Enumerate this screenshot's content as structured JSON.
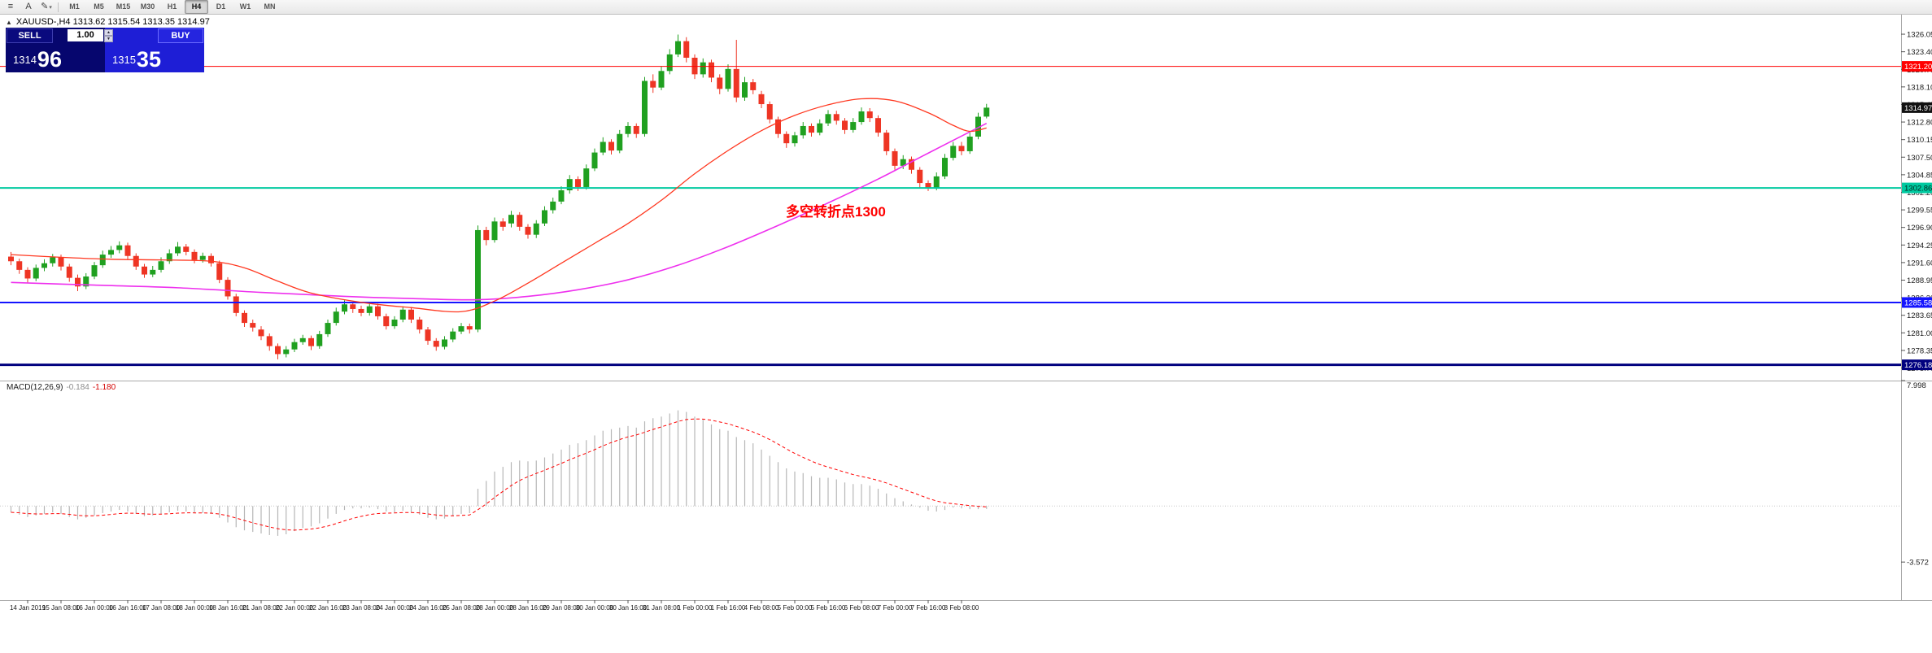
{
  "toolbar": {
    "icons": [
      {
        "name": "menu",
        "glyph": "≡"
      },
      {
        "name": "text-tool",
        "glyph": "A"
      },
      {
        "name": "draw-tool",
        "glyph": "✎",
        "caret": "▾"
      }
    ],
    "timeframes": [
      "M1",
      "M5",
      "M15",
      "M30",
      "H1",
      "H4",
      "D1",
      "W1",
      "MN"
    ],
    "active_timeframe": "H4"
  },
  "chart_header": {
    "marker": "▲",
    "text": "XAUUSD-,H4 1313.62 1315.54 1313.35 1314.97"
  },
  "trade_panel": {
    "sell_label": "SELL",
    "buy_label": "BUY",
    "volume": "1.00",
    "bid_small": "1314",
    "bid_big": "96",
    "ask_small": "1315",
    "ask_big": "35"
  },
  "annotation": {
    "text": "多空转折点1300",
    "color": "#ff0000"
  },
  "macd_panel": {
    "label": "MACD(12,26,9)",
    "value_main": "-0.184",
    "value_signal": "-1.180",
    "axis_labels": [
      {
        "text": "7.998",
        "value": 7.998
      },
      {
        "text": "-3.572",
        "value": -3.572
      }
    ]
  },
  "price_axis": {
    "ticks": [
      "1326.05",
      "1323.40",
      "1320.75",
      "1318.10",
      "1315.45",
      "1312.80",
      "1310.15",
      "1307.50",
      "1304.85",
      "1302.20",
      "1299.55",
      "1296.90",
      "1294.25",
      "1291.60",
      "1288.95",
      "1286.30",
      "1283.65",
      "1281.00",
      "1278.35",
      "1275.70"
    ]
  },
  "axis_tags": [
    {
      "text": "1321.20",
      "value": 1321.2,
      "bg": "#ff0000",
      "fg": "#ffffff"
    },
    {
      "text": "1314.97",
      "value": 1314.97,
      "bg": "#111111",
      "fg": "#ffffff"
    },
    {
      "text": "1302.86",
      "value": 1302.86,
      "bg": "#00c9a0",
      "fg": "#00281e"
    },
    {
      "text": "1285.58",
      "value": 1285.58,
      "bg": "#1414ff",
      "fg": "#ffffff"
    },
    {
      "text": "1276.18",
      "value": 1276.18,
      "bg": "#00007f",
      "fg": "#ffffff"
    }
  ],
  "time_axis": {
    "labels": [
      "14 Jan 2019",
      "15 Jan 08:00",
      "16 Jan 00:00",
      "16 Jan 16:00",
      "17 Jan 08:00",
      "18 Jan 00:00",
      "18 Jan 16:00",
      "21 Jan 08:00",
      "22 Jan 00:00",
      "22 Jan 16:00",
      "23 Jan 08:00",
      "24 Jan 00:00",
      "24 Jan 16:00",
      "25 Jan 08:00",
      "28 Jan 00:00",
      "28 Jan 16:00",
      "29 Jan 08:00",
      "30 Jan 00:00",
      "30 Jan 16:00",
      "31 Jan 08:00",
      "1 Feb 00:00",
      "1 Feb 16:00",
      "4 Feb 08:00",
      "5 Feb 00:00",
      "5 Feb 16:00",
      "6 Feb 08:00",
      "7 Feb 00:00",
      "7 Feb 16:00",
      "8 Feb 08:00"
    ]
  },
  "chart_data": {
    "type": "candlestick",
    "symbol": "XAUUSD-",
    "timeframe": "H4",
    "y_range": [
      1273.8,
      1329.0
    ],
    "macd_range": [
      -6.0,
      7.998
    ],
    "colors": {
      "up": "#20a020",
      "down": "#ee3524",
      "hist": "#b6b6b6",
      "signal": "#ff0000"
    },
    "h_lines": [
      {
        "price": 1321.2,
        "color": "#ff0000",
        "width": 1
      },
      {
        "price": 1302.86,
        "color": "#00c9a0",
        "width": 2
      },
      {
        "price": 1285.58,
        "color": "#1414ff",
        "width": 2
      },
      {
        "price": 1276.18,
        "color": "#00007f",
        "width": 3
      }
    ],
    "ma_fast": {
      "name": "MA fast",
      "color": "#ff3820",
      "points": [
        [
          0,
          1292.8
        ],
        [
          6,
          1292.4
        ],
        [
          12,
          1292.1
        ],
        [
          18,
          1292.0
        ],
        [
          24,
          1291.8
        ],
        [
          28,
          1290.8
        ],
        [
          32,
          1288.8
        ],
        [
          36,
          1287.0
        ],
        [
          42,
          1285.6
        ],
        [
          48,
          1284.8
        ],
        [
          54,
          1284.2
        ],
        [
          58,
          1285.8
        ],
        [
          62,
          1288.5
        ],
        [
          66,
          1291.5
        ],
        [
          70,
          1294.5
        ],
        [
          74,
          1297.5
        ],
        [
          78,
          1301.0
        ],
        [
          82,
          1305.0
        ],
        [
          86,
          1308.5
        ],
        [
          90,
          1311.5
        ],
        [
          94,
          1313.8
        ],
        [
          98,
          1315.4
        ],
        [
          102,
          1316.3
        ],
        [
          106,
          1316.0
        ],
        [
          110,
          1314.2
        ],
        [
          113,
          1312.3
        ],
        [
          115,
          1311.4
        ],
        [
          117,
          1311.9
        ]
      ]
    },
    "ma_slow": {
      "name": "MA slow",
      "color": "#ee30ee",
      "points": [
        [
          0,
          1288.6
        ],
        [
          10,
          1288.2
        ],
        [
          20,
          1287.8
        ],
        [
          30,
          1287.1
        ],
        [
          40,
          1286.5
        ],
        [
          50,
          1286.1
        ],
        [
          56,
          1286.0
        ],
        [
          62,
          1286.5
        ],
        [
          68,
          1287.5
        ],
        [
          74,
          1289.0
        ],
        [
          80,
          1291.2
        ],
        [
          86,
          1294.0
        ],
        [
          92,
          1297.2
        ],
        [
          98,
          1300.6
        ],
        [
          104,
          1304.2
        ],
        [
          108,
          1306.8
        ],
        [
          112,
          1309.4
        ],
        [
          117,
          1312.6
        ]
      ]
    },
    "candles": [
      [
        1292.5,
        1293.2,
        1291.2,
        1291.8
      ],
      [
        1291.8,
        1292.2,
        1289.9,
        1290.5
      ],
      [
        1290.5,
        1290.9,
        1288.6,
        1289.2
      ],
      [
        1289.2,
        1291.3,
        1288.8,
        1290.8
      ],
      [
        1290.8,
        1292.1,
        1290.3,
        1291.5
      ],
      [
        1291.5,
        1292.9,
        1291.0,
        1292.4
      ],
      [
        1292.4,
        1292.8,
        1290.4,
        1291.0
      ],
      [
        1291.0,
        1291.4,
        1288.7,
        1289.3
      ],
      [
        1289.3,
        1289.8,
        1287.3,
        1288.0
      ],
      [
        1288.0,
        1290.0,
        1287.6,
        1289.5
      ],
      [
        1289.5,
        1291.7,
        1289.1,
        1291.2
      ],
      [
        1291.2,
        1293.4,
        1290.8,
        1292.8
      ],
      [
        1292.8,
        1294.1,
        1292.3,
        1293.5
      ],
      [
        1293.5,
        1294.8,
        1293.0,
        1294.2
      ],
      [
        1294.2,
        1294.6,
        1292.1,
        1292.6
      ],
      [
        1292.6,
        1293.0,
        1290.5,
        1291.0
      ],
      [
        1291.0,
        1291.4,
        1289.3,
        1289.8
      ],
      [
        1289.8,
        1291.1,
        1289.4,
        1290.5
      ],
      [
        1290.5,
        1292.4,
        1290.1,
        1291.8
      ],
      [
        1291.8,
        1293.6,
        1291.4,
        1293.0
      ],
      [
        1293.0,
        1294.7,
        1292.6,
        1294.0
      ],
      [
        1294.0,
        1294.4,
        1292.7,
        1293.2
      ],
      [
        1293.2,
        1293.6,
        1291.5,
        1292.0
      ],
      [
        1292.0,
        1293.1,
        1291.6,
        1292.6
      ],
      [
        1292.6,
        1293.0,
        1291.0,
        1291.5
      ],
      [
        1291.5,
        1291.9,
        1288.5,
        1289.0
      ],
      [
        1289.0,
        1289.4,
        1286.0,
        1286.5
      ],
      [
        1286.5,
        1286.9,
        1283.5,
        1284.0
      ],
      [
        1284.0,
        1284.4,
        1281.9,
        1282.5
      ],
      [
        1282.5,
        1283.0,
        1281.2,
        1281.8
      ],
      [
        1281.5,
        1282.0,
        1279.9,
        1280.5
      ],
      [
        1280.5,
        1280.9,
        1278.3,
        1279.0
      ],
      [
        1279.0,
        1279.4,
        1277.0,
        1277.8
      ],
      [
        1277.8,
        1279.0,
        1277.3,
        1278.5
      ],
      [
        1278.5,
        1280.1,
        1278.1,
        1279.6
      ],
      [
        1279.6,
        1280.7,
        1279.2,
        1280.2
      ],
      [
        1280.2,
        1280.6,
        1278.4,
        1279.0
      ],
      [
        1279.0,
        1281.3,
        1278.6,
        1280.8
      ],
      [
        1280.8,
        1283.0,
        1280.4,
        1282.5
      ],
      [
        1282.5,
        1284.8,
        1282.1,
        1284.2
      ],
      [
        1284.2,
        1285.9,
        1283.8,
        1285.3
      ],
      [
        1285.3,
        1285.7,
        1284.0,
        1284.6
      ],
      [
        1284.6,
        1285.1,
        1283.5,
        1284.0
      ],
      [
        1284.0,
        1285.5,
        1283.6,
        1285.0
      ],
      [
        1285.0,
        1285.4,
        1283.0,
        1283.5
      ],
      [
        1283.5,
        1283.9,
        1281.5,
        1282.0
      ],
      [
        1282.0,
        1283.5,
        1281.6,
        1283.0
      ],
      [
        1283.0,
        1285.0,
        1282.6,
        1284.5
      ],
      [
        1284.5,
        1284.9,
        1282.5,
        1283.0
      ],
      [
        1283.0,
        1283.4,
        1280.9,
        1281.5
      ],
      [
        1281.5,
        1281.9,
        1279.2,
        1279.8
      ],
      [
        1279.8,
        1280.2,
        1278.3,
        1278.9
      ],
      [
        1278.9,
        1280.5,
        1278.5,
        1280.0
      ],
      [
        1280.0,
        1281.7,
        1279.6,
        1281.2
      ],
      [
        1281.2,
        1282.5,
        1280.8,
        1282.0
      ],
      [
        1282.0,
        1282.4,
        1280.9,
        1281.5
      ],
      [
        1281.5,
        1297.2,
        1281.1,
        1296.5
      ],
      [
        1296.5,
        1297.0,
        1294.2,
        1295.0
      ],
      [
        1295.0,
        1298.4,
        1294.6,
        1297.8
      ],
      [
        1297.8,
        1298.3,
        1296.4,
        1297.0
      ],
      [
        1297.5,
        1299.4,
        1296.9,
        1298.8
      ],
      [
        1298.8,
        1299.2,
        1296.4,
        1297.0
      ],
      [
        1297.0,
        1297.4,
        1295.2,
        1295.8
      ],
      [
        1295.8,
        1298.0,
        1295.3,
        1297.5
      ],
      [
        1297.5,
        1300.1,
        1297.1,
        1299.5
      ],
      [
        1299.5,
        1301.4,
        1299.0,
        1300.8
      ],
      [
        1300.8,
        1303.1,
        1300.4,
        1302.5
      ],
      [
        1302.5,
        1304.8,
        1302.0,
        1304.2
      ],
      [
        1304.2,
        1304.6,
        1302.4,
        1303.0
      ],
      [
        1303.0,
        1306.4,
        1302.6,
        1305.8
      ],
      [
        1305.8,
        1308.8,
        1305.4,
        1308.2
      ],
      [
        1308.2,
        1310.5,
        1307.8,
        1309.8
      ],
      [
        1309.8,
        1310.2,
        1307.9,
        1308.5
      ],
      [
        1308.5,
        1311.6,
        1308.1,
        1311.0
      ],
      [
        1311.0,
        1312.8,
        1310.5,
        1312.2
      ],
      [
        1312.2,
        1312.6,
        1310.4,
        1311.0
      ],
      [
        1311.0,
        1319.6,
        1310.6,
        1319.0
      ],
      [
        1319.0,
        1320.0,
        1317.2,
        1318.0
      ],
      [
        1318.0,
        1321.2,
        1317.6,
        1320.5
      ],
      [
        1320.5,
        1323.8,
        1320.0,
        1323.0
      ],
      [
        1323.0,
        1326.0,
        1322.6,
        1325.0
      ],
      [
        1325.0,
        1325.6,
        1321.8,
        1322.5
      ],
      [
        1322.5,
        1323.0,
        1319.3,
        1320.0
      ],
      [
        1320.0,
        1322.4,
        1319.5,
        1321.8
      ],
      [
        1321.8,
        1322.2,
        1318.8,
        1319.5
      ],
      [
        1319.5,
        1320.0,
        1317.0,
        1317.8
      ],
      [
        1317.8,
        1321.5,
        1317.4,
        1320.8
      ],
      [
        1320.8,
        1325.2,
        1315.8,
        1316.5
      ],
      [
        1316.5,
        1319.6,
        1316.0,
        1318.8
      ],
      [
        1318.8,
        1319.3,
        1317.0,
        1317.6
      ],
      [
        1317.0,
        1317.5,
        1314.9,
        1315.5
      ],
      [
        1315.5,
        1315.9,
        1312.6,
        1313.2
      ],
      [
        1313.2,
        1313.6,
        1310.4,
        1311.0
      ],
      [
        1311.0,
        1311.4,
        1308.9,
        1309.6
      ],
      [
        1309.6,
        1311.3,
        1309.1,
        1310.8
      ],
      [
        1310.8,
        1312.8,
        1310.3,
        1312.2
      ],
      [
        1312.2,
        1312.6,
        1310.6,
        1311.2
      ],
      [
        1311.2,
        1313.2,
        1310.8,
        1312.6
      ],
      [
        1312.6,
        1314.6,
        1312.2,
        1314.0
      ],
      [
        1314.0,
        1314.5,
        1312.4,
        1313.0
      ],
      [
        1313.0,
        1313.4,
        1311.0,
        1311.6
      ],
      [
        1311.6,
        1313.4,
        1311.2,
        1312.8
      ],
      [
        1312.8,
        1315.0,
        1312.4,
        1314.4
      ],
      [
        1314.4,
        1314.9,
        1312.8,
        1313.4
      ],
      [
        1313.4,
        1313.8,
        1310.6,
        1311.2
      ],
      [
        1311.2,
        1311.6,
        1307.8,
        1308.4
      ],
      [
        1308.4,
        1308.8,
        1305.6,
        1306.2
      ],
      [
        1306.2,
        1307.8,
        1305.7,
        1307.2
      ],
      [
        1307.2,
        1307.6,
        1305.0,
        1305.6
      ],
      [
        1305.6,
        1306.0,
        1302.9,
        1303.6
      ],
      [
        1303.6,
        1304.0,
        1302.4,
        1302.8
      ],
      [
        1302.8,
        1305.2,
        1302.5,
        1304.6
      ],
      [
        1304.6,
        1308.0,
        1304.2,
        1307.4
      ],
      [
        1307.4,
        1309.8,
        1307.0,
        1309.2
      ],
      [
        1309.2,
        1309.8,
        1307.8,
        1308.4
      ],
      [
        1308.4,
        1311.2,
        1308.0,
        1310.6
      ],
      [
        1310.6,
        1314.2,
        1310.2,
        1313.6
      ],
      [
        1313.62,
        1315.54,
        1313.35,
        1314.97
      ]
    ],
    "macd_hist": [
      -0.4,
      -0.55,
      -0.7,
      -0.6,
      -0.5,
      -0.4,
      -0.5,
      -0.7,
      -0.85,
      -0.75,
      -0.6,
      -0.45,
      -0.35,
      -0.25,
      -0.35,
      -0.5,
      -0.65,
      -0.6,
      -0.5,
      -0.4,
      -0.3,
      -0.35,
      -0.45,
      -0.45,
      -0.5,
      -0.75,
      -1.05,
      -1.35,
      -1.55,
      -1.65,
      -1.75,
      -1.85,
      -1.9,
      -1.8,
      -1.6,
      -1.4,
      -1.3,
      -1.1,
      -0.8,
      -0.5,
      -0.25,
      -0.15,
      -0.15,
      -0.1,
      -0.2,
      -0.35,
      -0.4,
      -0.3,
      -0.4,
      -0.55,
      -0.75,
      -0.85,
      -0.8,
      -0.65,
      -0.5,
      -0.45,
      1.1,
      1.6,
      2.2,
      2.5,
      2.8,
      2.9,
      2.85,
      2.9,
      3.1,
      3.35,
      3.6,
      3.9,
      4.0,
      4.2,
      4.5,
      4.8,
      4.9,
      5.0,
      5.1,
      5.0,
      5.4,
      5.6,
      5.7,
      5.9,
      6.1,
      6.0,
      5.7,
      5.5,
      5.2,
      4.9,
      4.8,
      4.4,
      4.2,
      4.0,
      3.6,
      3.2,
      2.8,
      2.4,
      2.2,
      2.1,
      1.9,
      1.8,
      1.8,
      1.7,
      1.5,
      1.4,
      1.4,
      1.3,
      1.1,
      0.8,
      0.5,
      0.3,
      0.1,
      -0.1,
      -0.3,
      -0.35,
      -0.25,
      -0.1,
      -0.15,
      -0.2,
      -0.2,
      -0.184
    ]
  }
}
